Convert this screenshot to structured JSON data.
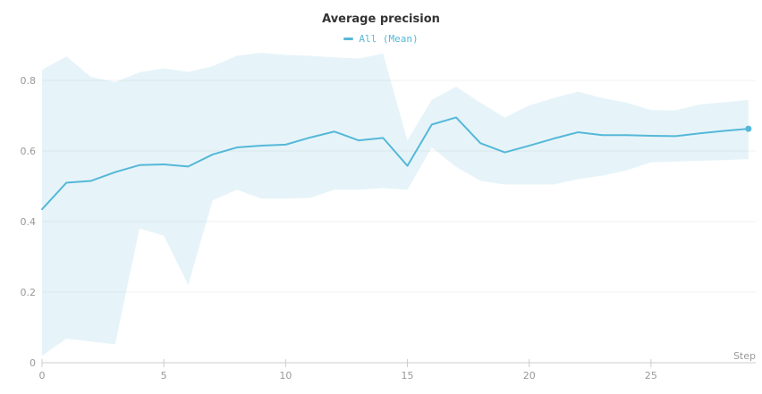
{
  "header": {
    "title": "Average precision",
    "legend": {
      "label": "All (Mean)"
    }
  },
  "colors": {
    "line": "#55b8d8",
    "band_fill": "rgba(85,184,216,0.15)",
    "grid": "#f0f0f0",
    "axis": "#cccccc",
    "tick_text": "#999999",
    "title_text": "#333333"
  },
  "chart_data": {
    "type": "line",
    "title": "Average precision",
    "xlabel": "Step",
    "ylabel": "",
    "legend": [
      "All (Mean)"
    ],
    "legend_position": "top-center",
    "grid": "horizontal",
    "x_ticks": [
      0,
      5,
      10,
      15,
      20,
      25
    ],
    "y_ticks": [
      0,
      0.2,
      0.4,
      0.6,
      0.8
    ],
    "xlim": [
      0,
      29.3
    ],
    "ylim": [
      0,
      0.886
    ],
    "series": [
      {
        "name": "All (Mean)",
        "x": [
          0,
          1,
          2,
          3,
          4,
          5,
          6,
          7,
          8,
          9,
          10,
          11,
          12,
          13,
          14,
          15,
          16,
          17,
          18,
          19,
          20,
          21,
          22,
          23,
          24,
          25,
          26,
          27,
          28,
          29
        ],
        "y": [
          0.435,
          0.51,
          0.515,
          0.54,
          0.56,
          0.562,
          0.556,
          0.59,
          0.61,
          0.615,
          0.618,
          0.638,
          0.655,
          0.63,
          0.637,
          0.558,
          0.675,
          0.695,
          0.622,
          0.596,
          0.615,
          0.635,
          0.653,
          0.645,
          0.645,
          0.643,
          0.642,
          0.65,
          0.657,
          0.663
        ],
        "marker_on_last_point": true
      }
    ],
    "band": {
      "name": "All (min/max range)",
      "x": [
        0,
        1,
        2,
        3,
        4,
        5,
        6,
        7,
        8,
        9,
        10,
        11,
        12,
        13,
        14,
        15,
        16,
        17,
        18,
        19,
        20,
        21,
        22,
        23,
        24,
        25,
        26,
        27,
        28,
        29
      ],
      "upper": [
        0.83,
        0.868,
        0.81,
        0.795,
        0.823,
        0.834,
        0.824,
        0.84,
        0.87,
        0.878,
        0.872,
        0.87,
        0.865,
        0.862,
        0.876,
        0.63,
        0.745,
        0.782,
        0.737,
        0.695,
        0.729,
        0.75,
        0.768,
        0.75,
        0.737,
        0.716,
        0.715,
        0.732,
        0.738,
        0.745
      ],
      "lower": [
        0.02,
        0.068,
        0.06,
        0.052,
        0.38,
        0.36,
        0.22,
        0.46,
        0.49,
        0.465,
        0.465,
        0.467,
        0.49,
        0.49,
        0.495,
        0.49,
        0.61,
        0.555,
        0.515,
        0.505,
        0.505,
        0.505,
        0.52,
        0.53,
        0.545,
        0.568,
        0.57,
        0.572,
        0.574,
        0.577
      ]
    }
  }
}
